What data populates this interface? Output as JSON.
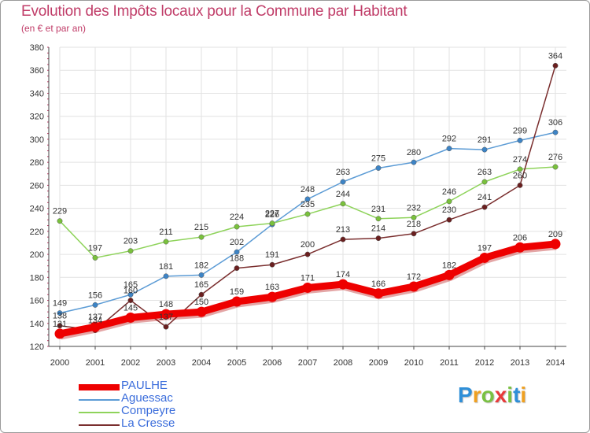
{
  "header": {
    "title": "Evolution des Impôts locaux pour la Commune par Habitant",
    "subtitle": "(en € et par an)"
  },
  "colors": {
    "title": "#c03c68",
    "legend_text": "#3b6ddb",
    "grid": "#e2e2e2"
  },
  "logo": {
    "letters": [
      {
        "ch": "P",
        "color": "#2f8fd8"
      },
      {
        "ch": "r",
        "color": "#f0a020"
      },
      {
        "ch": "o",
        "color": "#7ac142"
      },
      {
        "ch": "x",
        "color": "#e83a3a"
      },
      {
        "ch": "i",
        "color": "#7ac142"
      },
      {
        "ch": "t",
        "color": "#2f8fd8"
      },
      {
        "ch": "i",
        "color": "#f0a020"
      }
    ]
  },
  "chart_data": {
    "type": "line",
    "title": "Evolution des Impôts locaux pour la Commune par Habitant",
    "ylabel": "(en € et par an)",
    "xlabel": "",
    "ylim": [
      120,
      380
    ],
    "yticks": [
      120,
      140,
      160,
      180,
      200,
      220,
      240,
      260,
      280,
      300,
      320,
      340,
      360,
      380
    ],
    "grid": true,
    "legend_position": "bottom-left",
    "categories": [
      "2000",
      "2001",
      "2002",
      "2003",
      "2004",
      "2005",
      "2006",
      "2007",
      "2008",
      "2009",
      "2010",
      "2011",
      "2012",
      "2013",
      "2014"
    ],
    "series": [
      {
        "name": "Aguessac",
        "color": "#5b9bd5",
        "marker": "#3d84c6",
        "values": [
          149,
          156,
          165,
          181,
          182,
          202,
          226,
          248,
          263,
          275,
          280,
          292,
          291,
          299,
          306
        ]
      },
      {
        "name": "Compeyre",
        "color": "#8ed35a",
        "marker": "#79c13c",
        "values": [
          229,
          197,
          203,
          211,
          215,
          224,
          227,
          235,
          244,
          231,
          232,
          246,
          263,
          274,
          276
        ]
      },
      {
        "name": "La Cresse",
        "color": "#7a2e2e",
        "marker": "#6a1f1f",
        "values": [
          138,
          134,
          160,
          137,
          165,
          188,
          191,
          200,
          213,
          214,
          218,
          230,
          241,
          260,
          364
        ]
      },
      {
        "name": "PAULHE",
        "color": "#ee0000",
        "marker": "#ee0000",
        "values": [
          131,
          137,
          145,
          148,
          150,
          159,
          163,
          171,
          174,
          166,
          172,
          182,
          197,
          206,
          209
        ]
      }
    ],
    "data_labels": {
      "Aguessac": [
        "149",
        "156",
        "165",
        "181",
        "182",
        "202",
        "226",
        "248",
        "263",
        "275",
        "280",
        "292",
        "291",
        "299",
        "306"
      ],
      "Compeyre": [
        "229",
        "197",
        "203",
        "211",
        "215",
        "224",
        "227",
        "235",
        "244",
        "231",
        "232",
        "246",
        "263",
        "274",
        "276"
      ],
      "La Cresse": [
        "138",
        "134",
        "160",
        "137",
        "165",
        "188",
        "191",
        "200",
        "213",
        "214",
        "218",
        "230",
        "241",
        "260",
        "364"
      ],
      "PAULHE": [
        "131",
        "137",
        "145",
        "148",
        "150",
        "159",
        "163",
        "171",
        "174",
        "166",
        "172",
        "182",
        "197",
        "206",
        "209"
      ]
    }
  },
  "legend": {
    "items": [
      {
        "label": "PAULHE",
        "color": "#ee0000"
      },
      {
        "label": "Aguessac",
        "color": "#5b9bd5"
      },
      {
        "label": "Compeyre",
        "color": "#8ed35a"
      },
      {
        "label": "La Cresse",
        "color": "#7a2e2e"
      }
    ]
  }
}
